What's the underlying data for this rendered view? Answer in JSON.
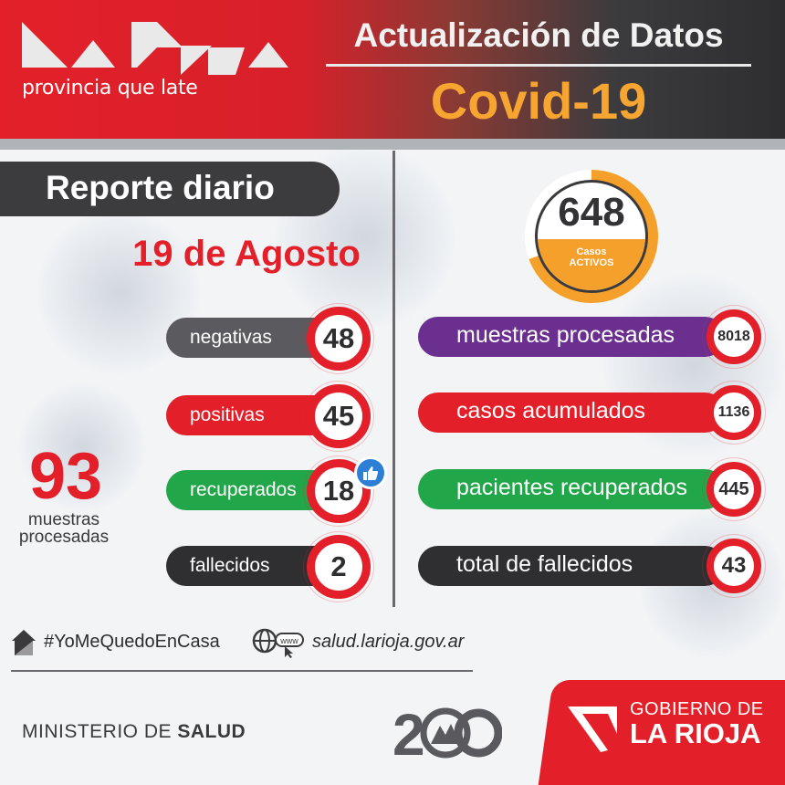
{
  "header": {
    "logo_tagline": "provincia que late",
    "title": "Actualización de Datos",
    "subtitle": "Covid-19"
  },
  "daily_report": {
    "label": "Reporte diario",
    "date": "19 de Agosto",
    "stats": [
      {
        "label": "negativas",
        "value": "48",
        "color": "#5b5a5e"
      },
      {
        "label": "positivas",
        "value": "45",
        "color": "#e3202a"
      },
      {
        "label": "recuperados",
        "value": "18",
        "color": "#22a64a"
      },
      {
        "label": "fallecidos",
        "value": "2",
        "color": "#2f2f32"
      }
    ],
    "samples_total": "93",
    "samples_label_1": "muestras",
    "samples_label_2": "procesadas",
    "like_icon": "thumbs-up-icon"
  },
  "active_cases": {
    "value": "648",
    "label_1": "Casos",
    "label_2": "ACTIVOS",
    "ring_color": "#f4a02a"
  },
  "totals": [
    {
      "label": "muestras procesadas",
      "value": "8018",
      "color": "#6b2f8f"
    },
    {
      "label": "casos acumulados",
      "value": "1136",
      "color": "#e3202a"
    },
    {
      "label": "pacientes recuperados",
      "value": "445",
      "color": "#22a64a"
    },
    {
      "label": "total de fallecidos",
      "value": "43",
      "color": "#2f2f32"
    }
  ],
  "footer": {
    "hashtag": "#YoMeQuedoEnCasa",
    "url": "salud.larioja.gov.ar",
    "ministry_prefix": "MINISTERIO DE",
    "ministry_bold": "SALUD",
    "government_line1": "GOBIERNO DE",
    "government_line2": "LA RIOJA"
  },
  "colors": {
    "brand_red": "#e3202a",
    "accent_orange": "#f6a531",
    "dark": "#2f2f32"
  }
}
